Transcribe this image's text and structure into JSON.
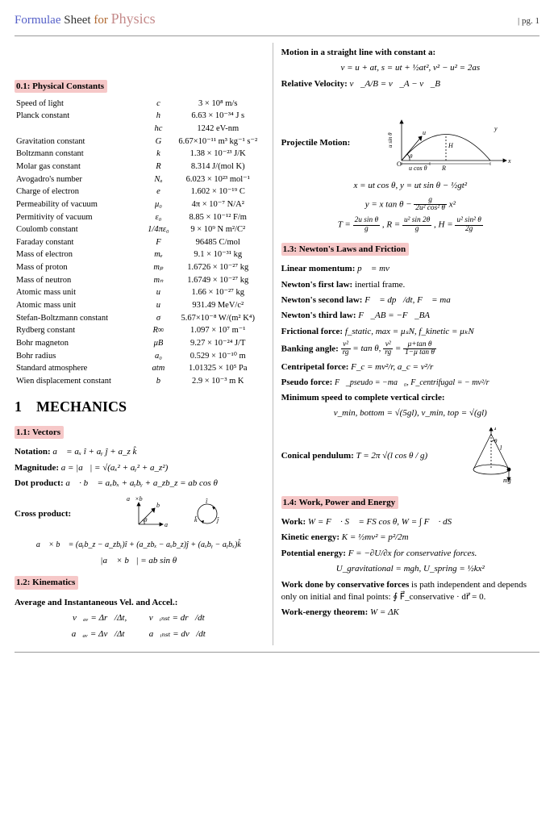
{
  "header": {
    "a": "Formulae",
    "b": "Sheet",
    "c": "for",
    "d": "Physics",
    "pg": "| pg. 1"
  },
  "sections": {
    "constants": "0.1: Physical Constants",
    "mechanics_no": "1",
    "mechanics": "MECHANICS",
    "vectors": "1.1: Vectors",
    "kinematics": "1.2: Kinematics",
    "newton": "1.3: Newton's Laws and Friction",
    "work": "1.4: Work, Power and Energy"
  },
  "constants": [
    {
      "name": "Speed of light",
      "sym": "c",
      "val": "3 × 10⁸ m/s"
    },
    {
      "name": "Planck constant",
      "sym": "h",
      "val": "6.63 × 10⁻³⁴ J s"
    },
    {
      "name": "",
      "sym": "hc",
      "val": "1242 eV-nm"
    },
    {
      "name": "Gravitation constant",
      "sym": "G",
      "val": "6.67×10⁻¹¹ m³ kg⁻¹ s⁻²"
    },
    {
      "name": "Boltzmann constant",
      "sym": "k",
      "val": "1.38 × 10⁻²³ J/K"
    },
    {
      "name": "Molar gas constant",
      "sym": "R",
      "val": "8.314 J/(mol K)"
    },
    {
      "name": "Avogadro's number",
      "sym": "Nₐ",
      "val": "6.023 × 10²³ mol⁻¹"
    },
    {
      "name": "Charge of electron",
      "sym": "e",
      "val": "1.602 × 10⁻¹⁹ C"
    },
    {
      "name": "Permeability of vacuum",
      "sym": "μ₀",
      "val": "4π × 10⁻⁷ N/A²"
    },
    {
      "name": "Permitivity of vacuum",
      "sym": "ε₀",
      "val": "8.85 × 10⁻¹² F/m"
    },
    {
      "name": "Coulomb constant",
      "sym": "1/4πε₀",
      "val": "9 × 10⁹ N m²/C²"
    },
    {
      "name": "Faraday constant",
      "sym": "F",
      "val": "96485 C/mol"
    },
    {
      "name": "Mass of electron",
      "sym": "mₑ",
      "val": "9.1 × 10⁻³¹ kg"
    },
    {
      "name": "Mass of proton",
      "sym": "mₚ",
      "val": "1.6726 × 10⁻²⁷ kg"
    },
    {
      "name": "Mass of neutron",
      "sym": "mₙ",
      "val": "1.6749 × 10⁻²⁷ kg"
    },
    {
      "name": "Atomic mass unit",
      "sym": "u",
      "val": "1.66 × 10⁻²⁷ kg"
    },
    {
      "name": "Atomic mass unit",
      "sym": "u",
      "val": "931.49 MeV/c²"
    },
    {
      "name": "Stefan-Boltzmann constant",
      "sym": "σ",
      "val": "5.67×10⁻⁸ W/(m² K⁴)"
    },
    {
      "name": "Rydberg constant",
      "sym": "R∞",
      "val": "1.097 × 10⁷ m⁻¹"
    },
    {
      "name": "Bohr magneton",
      "sym": "μB",
      "val": "9.27 × 10⁻²⁴ J/T"
    },
    {
      "name": "Bohr radius",
      "sym": "a₀",
      "val": "0.529 × 10⁻¹⁰ m"
    },
    {
      "name": "Standard atmosphere",
      "sym": "atm",
      "val": "1.01325 × 10⁵ Pa"
    },
    {
      "name": "Wien displacement constant",
      "sym": "b",
      "val": "2.9 × 10⁻³ m K"
    }
  ],
  "vectors": {
    "notation_lbl": "Notation:",
    "notation_eq": "a⃗ = aₓ î + aᵧ ĵ + a_z k̂",
    "magnitude_lbl": "Magnitude:",
    "magnitude_eq": "a = |a⃗| = √(aₓ² + aᵧ² + a_z²)",
    "dot_lbl": "Dot product:",
    "dot_eq": "a⃗ · b⃗ = aₓbₓ + aᵧbᵧ + a_zb_z = ab cos θ",
    "cross_lbl": "Cross product:",
    "cross_eq1": "a⃗ × b⃗ = (aᵧb_z − a_zbᵧ)î + (a_zbₓ − aₓb_z)ĵ + (aₓbᵧ − aᵧbₓ)k̂",
    "cross_eq2": "|a⃗ × b⃗| = ab sin θ"
  },
  "kinematics": {
    "heading": "Average and Instantaneous Vel. and Accel.:",
    "avg1": "v⃗ₐᵥ = Δr⃗/Δt,",
    "inst1": "v⃗ᵢₙₛₜ = dr⃗/dt",
    "avg2": "a⃗ₐᵥ = Δv⃗/Δt",
    "inst2": "a⃗ᵢₙₛₜ = dv⃗/dt",
    "straight_lbl": "Motion in a straight line with constant a:",
    "straight_eq": "v = u + at,    s = ut + ½at²,    v² − u² = 2as",
    "relvel_lbl": "Relative Velocity:",
    "relvel_eq": "v⃗_A/B = v⃗_A − v⃗_B",
    "proj_lbl": "Projectile Motion:",
    "proj_eq1": "x = ut cos θ,    y = ut sin θ − ½gt²",
    "proj_eq2_a": "y = x tan θ −",
    "proj_eq2_num": "g",
    "proj_eq2_den": "2u² cos² θ",
    "proj_eq2_c": "x²",
    "proj_eq3_a": "T =",
    "proj_eq3_T_n": "2u sin θ",
    "proj_eq3_T_d": "g",
    "proj_eq3_b": ",    R =",
    "proj_eq3_R_n": "u² sin 2θ",
    "proj_eq3_R_d": "g",
    "proj_eq3_c": ",    H =",
    "proj_eq3_H_n": "u² sin² θ",
    "proj_eq3_H_d": "2g"
  },
  "newton": {
    "lin_lbl": "Linear momentum:",
    "lin_eq": "p⃗ = mv⃗",
    "first_lbl": "Newton's first law:",
    "first_eq": "inertial frame.",
    "second_lbl": "Newton's second law:",
    "second_eq": "F⃗ = dp⃗/dt,    F⃗ = ma⃗",
    "third_lbl": "Newton's third law:",
    "third_eq": "F⃗_AB = −F⃗_BA",
    "fric_lbl": "Frictional force:",
    "fric_eq": "f_static, max = μₛN,    f_kinetic = μₖN",
    "bank_lbl": "Banking angle:",
    "bank_eq_a": "v²",
    "bank_eq_b": "rg",
    "bank_eq_c": "= tan θ,",
    "bank_eq_d": "v²",
    "bank_eq_e": "rg",
    "bank_eq_f": "=",
    "bank_eq_g": "μ+tan θ",
    "bank_eq_h": "1−μ tan θ",
    "cent_lbl": "Centripetal force:",
    "cent_eq": "F_c = mv²/r,    a_c = v²/r",
    "pseudo_lbl": "Pseudo force:",
    "pseudo_eq": "F⃗_pseudo = −ma⃗₀,    F_centrifugal = − mv²/r",
    "circle_lbl": "Minimum speed to complete vertical circle:",
    "circle_eq": "v_min, bottom = √(5gl),    v_min, top = √(gl)",
    "conical_lbl": "Conical pendulum:",
    "conical_eq": "T = 2π √(l cos θ / g)"
  },
  "work": {
    "work_lbl": "Work:",
    "work_eq": "W = F⃗ · S⃗ = FS cos θ,    W = ∫ F⃗ · dS⃗",
    "ke_lbl": "Kinetic energy:",
    "ke_eq": "K = ½mv² = p²/2m",
    "pe_lbl": "Potential energy:",
    "pe_eq": "F = −∂U/∂x for conservative forces.",
    "pe_eq2": "U_gravitational = mgh,    U_spring = ½kx²",
    "cons_lbl": "Work done by conservative forces",
    "cons_txt": "is path independent and depends only on initial and final points: ∮ F⃗_conservative · dr⃗ = 0.",
    "wet_lbl": "Work-energy theorem:",
    "wet_eq": "W = ΔK"
  },
  "diagrams": {
    "projectile": {
      "labels": {
        "u": "u",
        "y": "y",
        "x": "x",
        "H": "H",
        "R": "R",
        "usin": "u sin θ",
        "ucos": "u cos θ",
        "theta": "θ",
        "O": "O"
      },
      "stroke": "#000000",
      "fill": "none"
    },
    "cross_vectors": {
      "a": "a⃗",
      "b": "b⃗",
      "ab": "a⃗ × b⃗",
      "theta": "θ",
      "i": "î",
      "j": "ĵ",
      "k": "k̂",
      "stroke": "#000"
    },
    "cone": {
      "T": "T",
      "l": "l",
      "theta": "θ",
      "mg": "mg",
      "stroke": "#000"
    }
  }
}
